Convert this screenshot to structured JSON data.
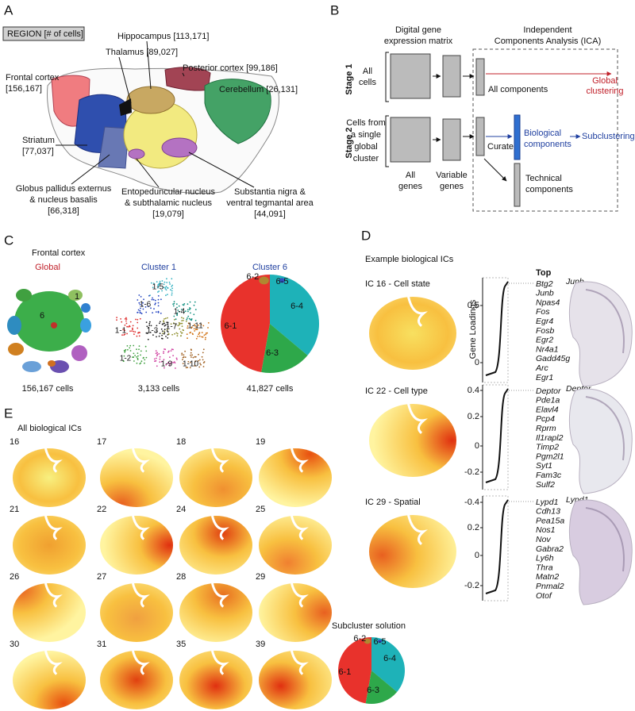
{
  "panel_a": {
    "label": "A",
    "legend": "REGION [# of cells]",
    "regions": [
      {
        "lines": [
          "Hippocampus [113,171]"
        ]
      },
      {
        "lines": [
          "Thalamus [89,027]"
        ]
      },
      {
        "lines": [
          "Posterior cortex [99,186]"
        ]
      },
      {
        "lines": [
          "Frontal cortex",
          "[156,167]"
        ]
      },
      {
        "lines": [
          "Cerebellum [26,131]"
        ]
      },
      {
        "lines": [
          "Striatum",
          "[77,037]"
        ]
      },
      {
        "lines": [
          "Globus pallidus externus",
          "& nucleus basalis",
          "[66,318]"
        ]
      },
      {
        "lines": [
          "Entopeduncular nucleus",
          "& subthalamic nucleus",
          "[19,079]"
        ]
      },
      {
        "lines": [
          "Substantia nigra &",
          "ventral tegmantal area",
          "[44,091]"
        ]
      }
    ]
  },
  "panel_b": {
    "label": "B",
    "matrix_header": [
      "Digital gene",
      "expression matrix"
    ],
    "ica_header": [
      "Independent",
      "Components Analysis (ICA)"
    ],
    "stage1": {
      "label": "Stage 1",
      "cells": [
        "All",
        "cells"
      ],
      "components": "All components",
      "output": [
        "Global",
        "clustering"
      ]
    },
    "stage2": {
      "label": "Stage 2",
      "cells": [
        "Cells from",
        "a single",
        "global",
        "cluster"
      ],
      "all_genes": [
        "All",
        "genes"
      ],
      "variable_genes": [
        "Variable",
        "genes"
      ],
      "curate": "Curate",
      "biological": [
        "Biological",
        "components"
      ],
      "output": "Subclustering",
      "technical": [
        "Technical",
        "components"
      ]
    }
  },
  "panel_c": {
    "label": "C",
    "title": "Frontal cortex",
    "plots": [
      {
        "title": "Global",
        "labels": [
          "6",
          "1"
        ],
        "cells": "156,167 cells"
      },
      {
        "title": "Cluster 1",
        "labels": [
          "1-5",
          "1-6",
          "1-4",
          "1-1",
          "1-3",
          "1-7",
          "1-11",
          "1-2",
          "1-9",
          "1-10"
        ],
        "cells": "3,133 cells"
      },
      {
        "title": "Cluster 6",
        "labels": [
          "6-2",
          "6-5",
          "6-4",
          "6-1",
          "6-3"
        ],
        "cells": "41,827 cells"
      }
    ]
  },
  "panel_d": {
    "label": "D",
    "title": "Example biological ICs",
    "top": "Top",
    "axis": "Gene Loadings",
    "ics": [
      {
        "title": "IC 16 - Cell state",
        "ticks": [
          "0.5",
          "0"
        ],
        "genes": [
          "Btg2",
          "Junb",
          "Npas4",
          "Fos",
          "Egr4",
          "Fosb",
          "Egr2",
          "Nr4a1",
          "Gadd45g",
          "Arc",
          "Egr1"
        ],
        "image": "Junb"
      },
      {
        "title": "IC 22 - Cell type",
        "ticks": [
          "0.4",
          "0.2",
          "0",
          "-0.2"
        ],
        "genes": [
          "Deptor",
          "Pde1a",
          "Elavl4",
          "Pcp4",
          "Rprm",
          "Il1rapl2",
          "Timp2",
          "Pgm2l1",
          "Syt1",
          "Fam3c",
          "Sulf2"
        ],
        "image": "Deptor"
      },
      {
        "title": "IC 29 - Spatial",
        "ticks": [
          "-0.4",
          "0.2",
          "0",
          "-0.2"
        ],
        "genes": [
          "Lypd1",
          "Cdh13",
          "Pea15a",
          "Nos1",
          "Nov",
          "Gabra2",
          "Ly6h",
          "Thra",
          "Matn2",
          "Pnmal2",
          "Otof"
        ],
        "image": "Lypd1"
      }
    ]
  },
  "panel_e": {
    "label": "E",
    "title": "All biological ICs",
    "ics": [
      "16",
      "17",
      "18",
      "19",
      "21",
      "22",
      "24",
      "25",
      "26",
      "27",
      "28",
      "29",
      "30",
      "31",
      "35",
      "39"
    ],
    "subcluster_title": "Subcluster solution",
    "subcluster_labels": [
      "6-2",
      "6-5",
      "6-4",
      "6-1",
      "6-3"
    ]
  }
}
